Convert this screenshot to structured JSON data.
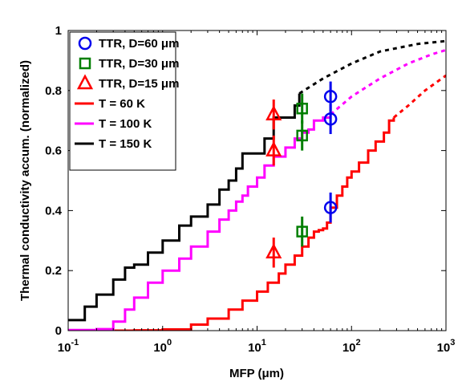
{
  "chart_data": {
    "type": "line",
    "title": "",
    "xlabel": "MFP (μm)",
    "ylabel": "Thermal conductivity accum. (normalized)",
    "xscale": "log",
    "xlim": [
      0.1,
      1000
    ],
    "ylim": [
      0,
      1
    ],
    "grid": false,
    "legend_position": "top-left",
    "x_ticks": [
      {
        "base": "10",
        "exp": "-1",
        "value": 0.1
      },
      {
        "base": "10",
        "exp": "0",
        "value": 1
      },
      {
        "base": "10",
        "exp": "1",
        "value": 10
      },
      {
        "base": "10",
        "exp": "2",
        "value": 100
      },
      {
        "base": "10",
        "exp": "3",
        "value": 1000
      }
    ],
    "y_ticks": [
      {
        "label": "0",
        "value": 0
      },
      {
        "label": "0.2",
        "value": 0.2
      },
      {
        "label": "0.4",
        "value": 0.4
      },
      {
        "label": "0.6",
        "value": 0.6
      },
      {
        "label": "0.8",
        "value": 0.8
      },
      {
        "label": "1",
        "value": 1
      }
    ],
    "series": [
      {
        "name": "TTR, D=60 μm",
        "color": "#0000ee",
        "marker": "circle",
        "kind": "points",
        "points": [
          {
            "x": 60,
            "y": 0.78,
            "err": 0.05
          },
          {
            "x": 60,
            "y": 0.705,
            "err": 0.05
          },
          {
            "x": 60,
            "y": 0.41,
            "err": 0.05
          }
        ]
      },
      {
        "name": "TTR, D=30 μm",
        "color": "#007f00",
        "marker": "square",
        "kind": "points",
        "points": [
          {
            "x": 30,
            "y": 0.74,
            "err": 0.05
          },
          {
            "x": 30,
            "y": 0.65,
            "err": 0.05
          },
          {
            "x": 30,
            "y": 0.33,
            "err": 0.05
          }
        ]
      },
      {
        "name": "TTR, D=15 μm",
        "color": "#ff0000",
        "marker": "triangle",
        "kind": "points",
        "points": [
          {
            "x": 15,
            "y": 0.72,
            "err": 0.05
          },
          {
            "x": 15,
            "y": 0.6,
            "err": 0.05
          },
          {
            "x": 15,
            "y": 0.26,
            "err": 0.05
          }
        ]
      },
      {
        "name": "T = 60 K",
        "color": "#ff0000",
        "kind": "line",
        "points": [
          [
            0.1,
            0
          ],
          [
            0.5,
            0.001
          ],
          [
            1,
            0.004
          ],
          [
            2,
            0.02
          ],
          [
            3,
            0.04
          ],
          [
            5,
            0.07
          ],
          [
            7,
            0.1
          ],
          [
            10,
            0.13
          ],
          [
            13,
            0.16
          ],
          [
            17,
            0.19
          ],
          [
            20,
            0.22
          ],
          [
            25,
            0.25
          ],
          [
            30,
            0.28
          ],
          [
            35,
            0.31
          ],
          [
            40,
            0.33
          ],
          [
            45,
            0.335
          ],
          [
            50,
            0.34
          ],
          [
            55,
            0.36
          ],
          [
            60,
            0.41
          ],
          [
            70,
            0.45
          ],
          [
            80,
            0.48
          ],
          [
            90,
            0.51
          ],
          [
            100,
            0.53
          ],
          [
            120,
            0.56
          ],
          [
            150,
            0.6
          ],
          [
            180,
            0.63
          ],
          [
            220,
            0.66
          ],
          [
            250,
            0.7
          ],
          [
            280,
            0.71
          ]
        ],
        "dashed_points": [
          [
            280,
            0.71
          ],
          [
            400,
            0.75
          ],
          [
            600,
            0.8
          ],
          [
            1000,
            0.85
          ]
        ]
      },
      {
        "name": "T = 100 K",
        "color": "#ff00ff",
        "kind": "line",
        "points": [
          [
            0.1,
            0.002
          ],
          [
            0.2,
            0.005
          ],
          [
            0.3,
            0.03
          ],
          [
            0.4,
            0.07
          ],
          [
            0.5,
            0.11
          ],
          [
            0.7,
            0.16
          ],
          [
            1,
            0.2
          ],
          [
            1.5,
            0.24
          ],
          [
            2,
            0.28
          ],
          [
            3,
            0.33
          ],
          [
            4,
            0.37
          ],
          [
            5,
            0.4
          ],
          [
            6,
            0.43
          ],
          [
            7,
            0.45
          ],
          [
            8,
            0.48
          ],
          [
            10,
            0.51
          ],
          [
            12,
            0.55
          ],
          [
            15,
            0.58
          ],
          [
            20,
            0.61
          ],
          [
            25,
            0.64
          ],
          [
            30,
            0.66
          ],
          [
            35,
            0.67
          ],
          [
            40,
            0.7
          ],
          [
            50,
            0.71
          ],
          [
            60,
            0.72
          ]
        ],
        "dashed_points": [
          [
            60,
            0.72
          ],
          [
            100,
            0.78
          ],
          [
            200,
            0.84
          ],
          [
            400,
            0.89
          ],
          [
            700,
            0.92
          ],
          [
            1000,
            0.935
          ]
        ]
      },
      {
        "name": "T = 150 K",
        "color": "#000000",
        "kind": "line",
        "points": [
          [
            0.1,
            0.035
          ],
          [
            0.15,
            0.08
          ],
          [
            0.2,
            0.12
          ],
          [
            0.3,
            0.17
          ],
          [
            0.4,
            0.21
          ],
          [
            0.5,
            0.22
          ],
          [
            0.7,
            0.26
          ],
          [
            1,
            0.3
          ],
          [
            1.5,
            0.35
          ],
          [
            2,
            0.38
          ],
          [
            3,
            0.42
          ],
          [
            4,
            0.47
          ],
          [
            5,
            0.5
          ],
          [
            6,
            0.54
          ],
          [
            7,
            0.59
          ],
          [
            10,
            0.59
          ],
          [
            12,
            0.64
          ],
          [
            15,
            0.71
          ],
          [
            20,
            0.71
          ],
          [
            25,
            0.75
          ],
          [
            28,
            0.79
          ]
        ],
        "dashed_points": [
          [
            28,
            0.79
          ],
          [
            50,
            0.84
          ],
          [
            100,
            0.89
          ],
          [
            200,
            0.93
          ],
          [
            500,
            0.955
          ],
          [
            1000,
            0.965
          ]
        ]
      }
    ]
  }
}
